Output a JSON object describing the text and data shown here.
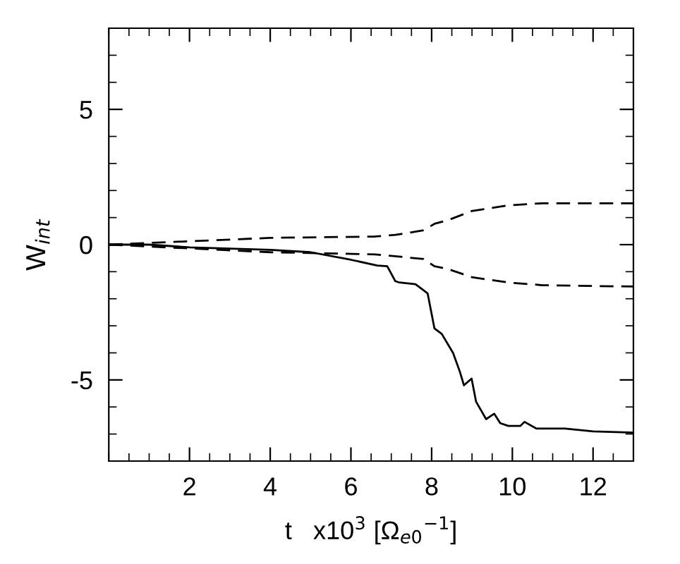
{
  "chart_data": {
    "type": "line",
    "xlabel": "t   x10$^{3}$ [Ω$_{e0}$$^{−1}$]",
    "ylabel": "W$_{int}$",
    "xlim": [
      0,
      13
    ],
    "ylim": [
      -8,
      8
    ],
    "xticks": [
      2,
      4,
      6,
      8,
      10,
      12
    ],
    "yticks": [
      -5,
      0,
      5
    ],
    "grid": false,
    "legend": false,
    "marker": "none",
    "series": [
      {
        "color": "#000000",
        "line_style": "solid",
        "x": [
          0,
          1,
          2,
          4,
          5,
          6,
          6.65,
          6.9,
          7.1,
          7.2,
          7.6,
          7.9,
          8.07,
          8.25,
          8.53,
          8.7,
          8.8,
          8.99,
          9.1,
          9.35,
          9.55,
          9.7,
          9.9,
          10.2,
          10.3,
          10.6,
          11.3,
          12.0,
          13
        ],
        "values": [
          0,
          0,
          -0.1,
          -0.19,
          -0.28,
          -0.56,
          -0.77,
          -0.8,
          -1.35,
          -1.4,
          -1.46,
          -1.8,
          -3.1,
          -3.3,
          -4.0,
          -4.7,
          -5.2,
          -4.95,
          -5.8,
          -6.45,
          -6.25,
          -6.6,
          -6.7,
          -6.7,
          -6.55,
          -6.8,
          -6.8,
          -6.9,
          -6.95
        ]
      },
      {
        "color": "#000000",
        "line_style": "dashed",
        "x": [
          0,
          4,
          6.6,
          7.1,
          7.8,
          8.07,
          8.4,
          8.99,
          9.9,
          10.75,
          13
        ],
        "values": [
          0,
          0.25,
          0.3,
          0.36,
          0.53,
          0.77,
          0.9,
          1.24,
          1.45,
          1.53,
          1.53
        ]
      },
      {
        "color": "#000000",
        "line_style": "dashed",
        "x": [
          0,
          4,
          6.6,
          7.8,
          8.07,
          8.4,
          8.99,
          9.9,
          10.75,
          13
        ],
        "values": [
          0,
          -0.28,
          -0.36,
          -0.53,
          -0.8,
          -0.9,
          -1.2,
          -1.4,
          -1.5,
          -1.55
        ]
      }
    ]
  }
}
